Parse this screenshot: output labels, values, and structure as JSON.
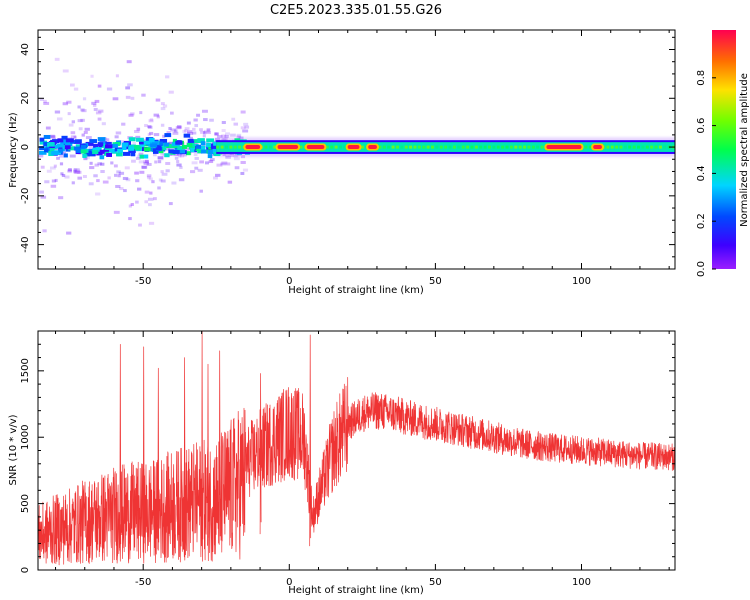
{
  "title": "C2E5.2023.335.01.55.G26",
  "chart_data": [
    {
      "type": "heatmap",
      "name": "spectrogram",
      "xlabel": "Height of straight line (km)",
      "ylabel": "Frequency (Hz)",
      "xlim": [
        -86,
        132
      ],
      "ylim": [
        -50,
        48
      ],
      "x_ticks": [
        -50,
        0,
        50,
        100
      ],
      "x_tick_labels": [
        "-50",
        "0",
        "50",
        "100"
      ],
      "y_ticks": [
        -40,
        -20,
        0,
        20,
        40
      ],
      "y_tick_labels": [
        "-40",
        "-20",
        "0",
        "20",
        "40"
      ],
      "grid": false,
      "colorbar": {
        "label": "Normalized spectral amplitude",
        "range": [
          0.0,
          1.0
        ],
        "ticks": [
          0.0,
          0.2,
          0.4,
          0.6,
          0.8
        ],
        "tick_labels": [
          "0.0",
          "0.2",
          "0.4",
          "0.6",
          "0.8"
        ],
        "colormap": "gist_rainbow (purple-blue-cyan-green-yellow-red)"
      },
      "band": {
        "center_hz": 0,
        "core_halfwidth_hz": 2,
        "outer_halfwidth_hz": 4,
        "scatter_region_km": [
          -86,
          -15
        ],
        "strong_segments_km": [
          [
            -15,
            -10
          ],
          [
            -4,
            3
          ],
          [
            6,
            12
          ],
          [
            20,
            24
          ],
          [
            27,
            30
          ],
          [
            88,
            100
          ],
          [
            104,
            107
          ]
        ]
      }
    },
    {
      "type": "line",
      "name": "snr",
      "xlabel": "Height of straight line (km)",
      "ylabel": "SNR (10 * v/v)",
      "xlim": [
        -86,
        132
      ],
      "ylim": [
        0,
        1800
      ],
      "x_ticks": [
        -50,
        0,
        50,
        100
      ],
      "x_tick_labels": [
        "-50",
        "0",
        "50",
        "100"
      ],
      "y_ticks": [
        0,
        500,
        1000,
        1500
      ],
      "y_tick_labels": [
        "0",
        "500",
        "1000",
        "1500"
      ],
      "grid": false,
      "line_color": "#ef3434",
      "series": [
        {
          "x": [
            -86,
            -80,
            -75,
            -70,
            -65,
            -60,
            -55,
            -50,
            -45,
            -40,
            -35,
            -30,
            -25,
            -20,
            -15,
            -10,
            -5,
            0,
            5,
            8,
            10,
            15,
            20,
            25,
            30,
            35,
            40,
            50,
            60,
            70,
            80,
            90,
            100,
            110,
            120,
            132
          ],
          "y": [
            300,
            350,
            380,
            420,
            450,
            480,
            500,
            500,
            520,
            560,
            580,
            600,
            620,
            700,
            800,
            900,
            980,
            1050,
            1000,
            400,
            550,
            900,
            1100,
            1180,
            1200,
            1180,
            1150,
            1100,
            1050,
            1000,
            950,
            920,
            900,
            880,
            860,
            850
          ]
        }
      ],
      "spikes": [
        {
          "x": -58,
          "y": 1700
        },
        {
          "x": -50,
          "y": 1680
        },
        {
          "x": -45,
          "y": 1520
        },
        {
          "x": -36,
          "y": 1600
        },
        {
          "x": -30,
          "y": 1800
        },
        {
          "x": -28,
          "y": 1550
        },
        {
          "x": -24,
          "y": 1650
        },
        {
          "x": -10,
          "y": 1480
        },
        {
          "x": 7,
          "y": 1770
        }
      ]
    }
  ]
}
